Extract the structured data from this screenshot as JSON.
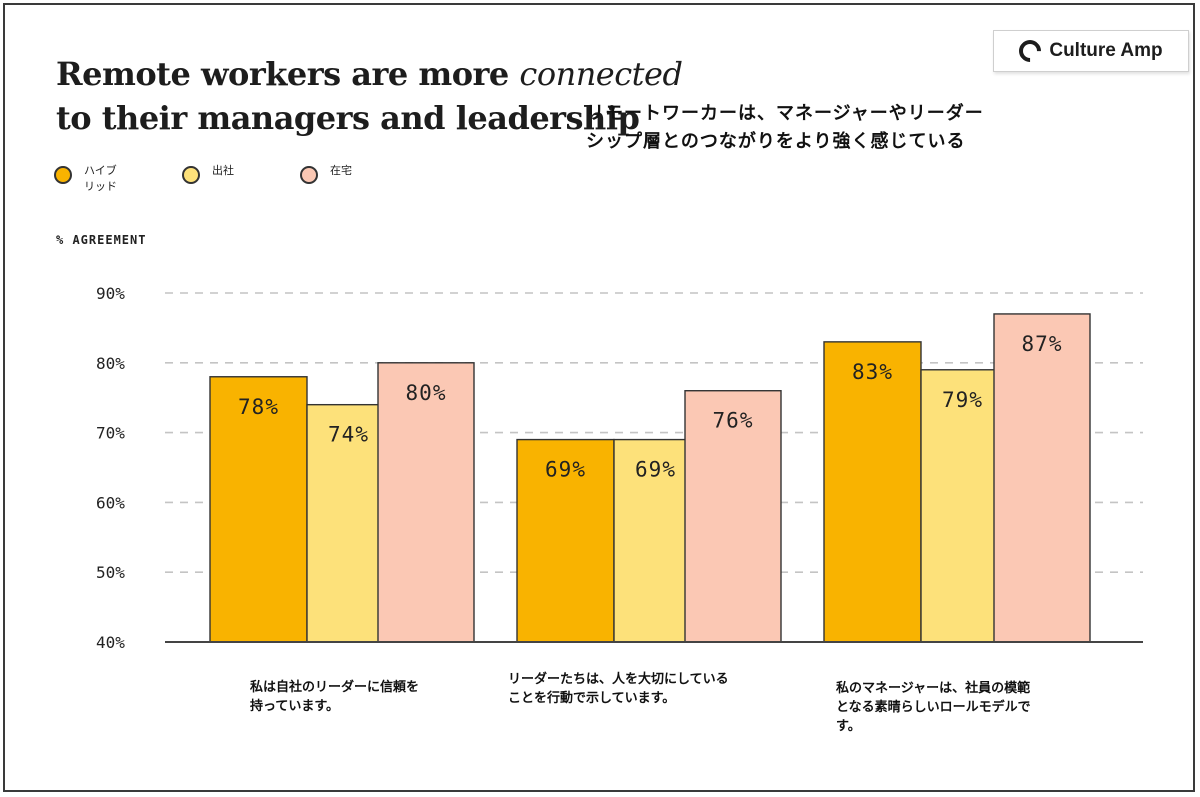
{
  "title_en_line1_pre": "Remote workers are more ",
  "title_en_line1_script": "connected",
  "title_en_line2": "to their managers and leadership",
  "title_jp_line1": "リモートワーカーは、マネージャーやリーダー",
  "title_jp_line2": "シップ層とのつながりをより強く感じている",
  "logo_text": "Culture Amp",
  "chart_data": {
    "type": "bar",
    "title": "Remote workers are more connected to their managers and leadership",
    "ylabel": "% AGREEMENT",
    "ylim": [
      40,
      90
    ],
    "yticks": [
      40,
      50,
      60,
      70,
      80,
      90
    ],
    "ytick_labels": [
      "40%",
      "50%",
      "60%",
      "70%",
      "80%",
      "90%"
    ],
    "grid": true,
    "legend_position": "top-left",
    "categories": [
      [
        "私は自社のリーダーに信頼を",
        "持っています。"
      ],
      [
        "リーダーたちは、人を大切にしている",
        "ことを行動で示しています。"
      ],
      [
        "私のマネージャーは、社員の模範",
        "となる素晴らしいロールモデルで",
        "す。"
      ]
    ],
    "series": [
      {
        "name": "ハイブリッド",
        "legend_lines": [
          "ハイブ",
          "リッド"
        ],
        "color": "#F9B300",
        "values": [
          78,
          69,
          83
        ],
        "labels": [
          "78%",
          "69%",
          "83%"
        ]
      },
      {
        "name": "出社",
        "legend_lines": [
          "出社"
        ],
        "color": "#FDE17A",
        "values": [
          74,
          69,
          79
        ],
        "labels": [
          "74%",
          "69%",
          "79%"
        ]
      },
      {
        "name": "在宅",
        "legend_lines": [
          "在宅"
        ],
        "color": "#FBC8B4",
        "values": [
          80,
          76,
          87
        ],
        "labels": [
          "80%",
          "76%",
          "87%"
        ]
      }
    ]
  }
}
